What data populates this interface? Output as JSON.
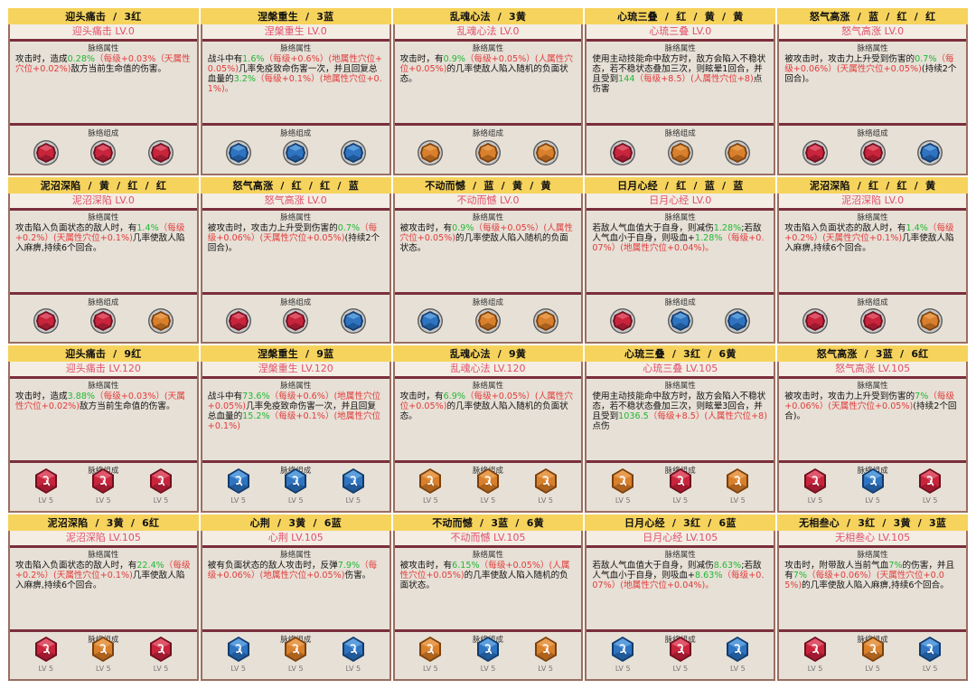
{
  "colors": {
    "red": "#c8243c",
    "blue": "#2f74c0",
    "yellow": "#d8802c",
    "green_text": "#22b833",
    "red_text": "#e33b3b"
  },
  "labels": {
    "attr_section": "脉络属性",
    "comp_section": "脉络组成"
  },
  "cards": [
    {
      "header": "迎头痛击  /  3红",
      "level": "迎头痛击 LV.0",
      "desc": [
        [
          "攻击时，造成",
          ""
        ],
        [
          "0.28%",
          "g"
        ],
        [
          "（每级+0.03%（天属性穴位+0.02%)",
          "r"
        ],
        [
          "敌方当前生命值的伤害。",
          ""
        ]
      ],
      "gems": [
        {
          "color": "red"
        },
        {
          "color": "red"
        },
        {
          "color": "red"
        }
      ]
    },
    {
      "header": "涅槃重生  /  3蓝",
      "level": "涅槃重生 LV.0",
      "desc": [
        [
          "战斗中有",
          ""
        ],
        [
          "1.6%",
          "g"
        ],
        [
          "（每级+0.6%）(地属性穴位+0.05%)",
          "r"
        ],
        [
          "几率免疫致命伤害一次，并且回复总血量的",
          ""
        ],
        [
          "3.2%",
          "g"
        ],
        [
          "（每级+0.1%）(地属性穴位+0.1%)。",
          "r"
        ]
      ],
      "gems": [
        {
          "color": "blue"
        },
        {
          "color": "blue"
        },
        {
          "color": "blue"
        }
      ]
    },
    {
      "header": "乱魂心法  /  3黄",
      "level": "乱魂心法 LV.0",
      "desc": [
        [
          "攻击时，有",
          ""
        ],
        [
          "0.9%",
          "g"
        ],
        [
          "（每级+0.05%）(人属性穴位+0.05%)",
          "r"
        ],
        [
          "的几率使敌人陷入随机的负面状态。",
          ""
        ]
      ],
      "gems": [
        {
          "color": "yellow"
        },
        {
          "color": "yellow"
        },
        {
          "color": "yellow"
        }
      ]
    },
    {
      "header": "心琉三叠  /  红  /  黄  /  黄",
      "level": "心琉三叠 LV.0",
      "desc": [
        [
          "使用主动技能命中敌方时，敌方会陷入不稳状态，若不稳状态叠加三次，则眩晕1回合，并且受到",
          ""
        ],
        [
          "144",
          "g"
        ],
        [
          "（每级+8.5）(人属性穴位+8)",
          "r"
        ],
        [
          "点伤害",
          ""
        ]
      ],
      "gems": [
        {
          "color": "red"
        },
        {
          "color": "yellow"
        },
        {
          "color": "yellow"
        }
      ]
    },
    {
      "header": "怒气高涨  /  蓝  /  红  /  红",
      "level": "怒气高涨 LV.0",
      "desc": [
        [
          "被攻击时，攻击力上升受到伤害的",
          ""
        ],
        [
          "0.7%",
          "g"
        ],
        [
          "（每级+0.06%）(天属性穴位+0.05%)",
          "r"
        ],
        [
          "(持续2个回合)。",
          ""
        ]
      ],
      "gems": [
        {
          "color": "red"
        },
        {
          "color": "red"
        },
        {
          "color": "blue"
        }
      ]
    },
    {
      "header": "泥沼深陷  /  黄  /  红  /  红",
      "level": "泥沼深陷 LV.0",
      "desc": [
        [
          "攻击陷入负面状态的敌人时，有",
          ""
        ],
        [
          "1.4%",
          "g"
        ],
        [
          "（每级+0.2%）(天属性穴位+0.1%)",
          "r"
        ],
        [
          "几率使敌人陷入麻痹,持续6个回合。",
          ""
        ]
      ],
      "gems": [
        {
          "color": "red"
        },
        {
          "color": "red"
        },
        {
          "color": "yellow"
        }
      ]
    },
    {
      "header": "怒气高涨  /  红  /  红  /  蓝",
      "level": "怒气高涨 LV.0",
      "desc": [
        [
          "被攻击时，攻击力上升受到伤害的",
          ""
        ],
        [
          "0.7%",
          "g"
        ],
        [
          "（每级+0.06%）(天属性穴位+0.05%)",
          "r"
        ],
        [
          "(持续2个回合)。",
          ""
        ]
      ],
      "gems": [
        {
          "color": "red"
        },
        {
          "color": "red"
        },
        {
          "color": "blue"
        }
      ]
    },
    {
      "header": "不动而憾  /  蓝  /  黄  /  黄",
      "level": "不动而憾 LV.0",
      "desc": [
        [
          "被攻击时，有",
          ""
        ],
        [
          "0.9%",
          "g"
        ],
        [
          "（每级+0.05%）(人属性穴位+0.05%)",
          "r"
        ],
        [
          "的几率使敌人陷入随机的负面状态。",
          ""
        ]
      ],
      "gems": [
        {
          "color": "blue"
        },
        {
          "color": "yellow"
        },
        {
          "color": "yellow"
        }
      ]
    },
    {
      "header": "日月心经  /  红  /  蓝  /  蓝",
      "level": "日月心经 LV.0",
      "desc": [
        [
          "若敌人气血值大于自身，则减伤",
          ""
        ],
        [
          "1.28%",
          "g"
        ],
        [
          ";若敌人气血小于自身，则吸血+",
          ""
        ],
        [
          "1.28%",
          "g"
        ],
        [
          "（每级+0.07%）(地属性穴位+0.04%)。",
          "r"
        ]
      ],
      "gems": [
        {
          "color": "red"
        },
        {
          "color": "blue"
        },
        {
          "color": "blue"
        }
      ]
    },
    {
      "header": "泥沼深陷  /  红  /  红  /  黄",
      "level": "泥沼深陷 LV.0",
      "desc": [
        [
          "攻击陷入负面状态的敌人时，有",
          ""
        ],
        [
          "1.4%",
          "g"
        ],
        [
          "（每级+0.2%）(天属性穴位+0.1%)",
          "r"
        ],
        [
          "几率使敌人陷入麻痹,持续6个回合。",
          ""
        ]
      ],
      "gems": [
        {
          "color": "red"
        },
        {
          "color": "red"
        },
        {
          "color": "yellow"
        }
      ]
    },
    {
      "header": "迎头痛击  /  9红",
      "level": "迎头痛击 LV.120",
      "desc": [
        [
          "攻击时，造成",
          ""
        ],
        [
          "3.88%",
          "g"
        ],
        [
          "（每级+0.03%）(天属性穴位+0.02%)",
          "r"
        ],
        [
          "敌方当前生命值的伤害。",
          ""
        ]
      ],
      "gems": [
        {
          "color": "red",
          "lv": "LV 5"
        },
        {
          "color": "red",
          "lv": "LV 5"
        },
        {
          "color": "red",
          "lv": "LV 5"
        }
      ]
    },
    {
      "header": "涅槃重生  /  9蓝",
      "level": "涅槃重生 LV.120",
      "desc": [
        [
          "战斗中有",
          ""
        ],
        [
          "73.6%",
          "g"
        ],
        [
          "（每级+0.6%）(地属性穴位+0.05%)",
          "r"
        ],
        [
          "几率免疫致命伤害一次，并且回复总血量的",
          ""
        ],
        [
          "15.2%",
          "g"
        ],
        [
          "（每级+0.1%）(地属性穴位+0.1%)",
          "r"
        ]
      ],
      "gems": [
        {
          "color": "blue",
          "lv": "LV 5"
        },
        {
          "color": "blue",
          "lv": "LV 5"
        },
        {
          "color": "blue",
          "lv": "LV 5"
        }
      ]
    },
    {
      "header": "乱魂心法  /  9黄",
      "level": "乱魂心法 LV.120",
      "desc": [
        [
          "攻击时，有",
          ""
        ],
        [
          "6.9%",
          "g"
        ],
        [
          "（每级+0.05%）(人属性穴位+0.05%)",
          "r"
        ],
        [
          "的几率使敌人陷入随机的负面状态。",
          ""
        ]
      ],
      "gems": [
        {
          "color": "yellow",
          "lv": "LV 5"
        },
        {
          "color": "yellow",
          "lv": "LV 5"
        },
        {
          "color": "yellow",
          "lv": "LV 5"
        }
      ]
    },
    {
      "header": "心琉三叠  /  3红  /  6黄",
      "level": "心琉三叠 LV.105",
      "desc": [
        [
          "使用主动技能命中敌方时，敌方会陷入不稳状态，若不稳状态叠加三次，则眩晕3回合，并且受到",
          ""
        ],
        [
          "1036.5",
          "g"
        ],
        [
          "（每级+8.5）(人属性穴位+8)",
          "r"
        ],
        [
          "点伤",
          ""
        ]
      ],
      "gems": [
        {
          "color": "yellow",
          "lv": "LV 5"
        },
        {
          "color": "red",
          "lv": "LV 5"
        },
        {
          "color": "yellow",
          "lv": "LV 5"
        }
      ]
    },
    {
      "header": "怒气高涨  /  3蓝  /  6红",
      "level": "怒气高涨 LV.105",
      "desc": [
        [
          "被攻击时，攻击力上升受到伤害的",
          ""
        ],
        [
          "7%",
          "g"
        ],
        [
          "（每级+0.06%）(天属性穴位+0.05%)",
          "r"
        ],
        [
          "(持续2个回合)。",
          ""
        ]
      ],
      "gems": [
        {
          "color": "red",
          "lv": "LV 5"
        },
        {
          "color": "blue",
          "lv": "LV 5"
        },
        {
          "color": "red",
          "lv": "LV 5"
        }
      ]
    },
    {
      "header": "泥沼深陷  /  3黄  /  6红",
      "level": "泥沼深陷 LV.105",
      "desc": [
        [
          "攻击陷入负面状态的敌人时，有",
          ""
        ],
        [
          "22.4%",
          "g"
        ],
        [
          "（每级+0.2%）(天属性穴位+0.1%)",
          "r"
        ],
        [
          "几率使敌人陷入麻痹,持续6个回合。",
          ""
        ]
      ],
      "gems": [
        {
          "color": "red",
          "lv": "LV 5"
        },
        {
          "color": "yellow",
          "lv": "LV 5"
        },
        {
          "color": "red",
          "lv": "LV 5"
        }
      ]
    },
    {
      "header": "心荆  /  3黄  /  6蓝",
      "level": "心荆 LV.105",
      "desc": [
        [
          "被有负面状态的敌人攻击时，反弹",
          ""
        ],
        [
          "7.9%",
          "g"
        ],
        [
          "（每级+0.06%）(地属性穴位+0.05%)",
          "r"
        ],
        [
          "伤害。",
          ""
        ]
      ],
      "gems": [
        {
          "color": "blue",
          "lv": "LV 5"
        },
        {
          "color": "yellow",
          "lv": "LV 5"
        },
        {
          "color": "blue",
          "lv": "LV 5"
        }
      ]
    },
    {
      "header": "不动而憾  /  3蓝  /  6黄",
      "level": "不动而憾 LV.105",
      "desc": [
        [
          "被攻击时，有",
          ""
        ],
        [
          "6.15%",
          "g"
        ],
        [
          "（每级+0.05%）(人属性穴位+0.05%)",
          "r"
        ],
        [
          "的几率使敌人陷入随机的负面状态。",
          ""
        ]
      ],
      "gems": [
        {
          "color": "yellow",
          "lv": "LV 5"
        },
        {
          "color": "blue",
          "lv": "LV 5"
        },
        {
          "color": "yellow",
          "lv": "LV 5"
        }
      ]
    },
    {
      "header": "日月心经  /  3红  /  6蓝",
      "level": "日月心经 LV.105",
      "desc": [
        [
          "若敌人气血值大于自身，则减伤",
          ""
        ],
        [
          "8.63%",
          "g"
        ],
        [
          ";若敌人气血小于自身，则吸血+",
          ""
        ],
        [
          "8.63%",
          "g"
        ],
        [
          "（每级+0.07%）(地属性穴位+0.04%)。",
          "r"
        ]
      ],
      "gems": [
        {
          "color": "blue",
          "lv": "LV 5"
        },
        {
          "color": "red",
          "lv": "LV 5"
        },
        {
          "color": "blue",
          "lv": "LV 5"
        }
      ]
    },
    {
      "header": "无相叁心  /  3红  /  3黄  /  3蓝",
      "level": "无相叁心 LV.105",
      "desc": [
        [
          "攻击时，附带敌人当前气血",
          ""
        ],
        [
          "7%",
          "g"
        ],
        [
          "的伤害，并且有",
          ""
        ],
        [
          "7%",
          "g"
        ],
        [
          "（每级+0.06%）(天属性穴位+0.05%)",
          "r"
        ],
        [
          "的几率使敌人陷入麻痹,持续6个回合。",
          ""
        ]
      ],
      "gems": [
        {
          "color": "red",
          "lv": "LV 5"
        },
        {
          "color": "yellow",
          "lv": "LV 5"
        },
        {
          "color": "blue",
          "lv": "LV 5"
        }
      ]
    }
  ]
}
